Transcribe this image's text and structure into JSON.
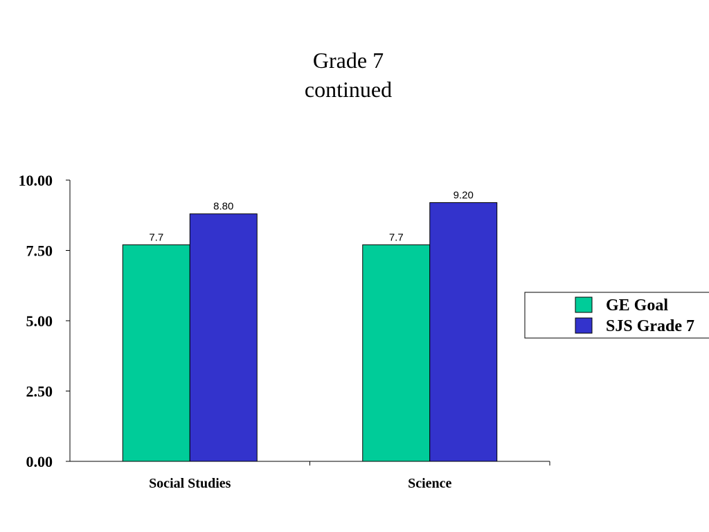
{
  "slide": {
    "title_line1": "Grade 7",
    "title_line2": "continued"
  },
  "chart_data": {
    "type": "bar",
    "categories": [
      "Social Studies",
      "Science"
    ],
    "series": [
      {
        "name": "GE Goal",
        "values": [
          7.7,
          7.7
        ],
        "labels": [
          "7.7",
          "7.7"
        ],
        "color": "#00CC99"
      },
      {
        "name": "SJS Grade 7",
        "values": [
          8.8,
          9.2
        ],
        "labels": [
          "8.80",
          "9.20"
        ],
        "color": "#3333CC"
      }
    ],
    "yticks": [
      0,
      2.5,
      5,
      7.5,
      10
    ],
    "ytick_labels": [
      "0.00",
      "2.50",
      "5.00",
      "7.50",
      "10.00"
    ],
    "ylim": [
      0,
      10
    ],
    "grid": false,
    "legend_position": "right",
    "xlabel": "",
    "ylabel": ""
  }
}
